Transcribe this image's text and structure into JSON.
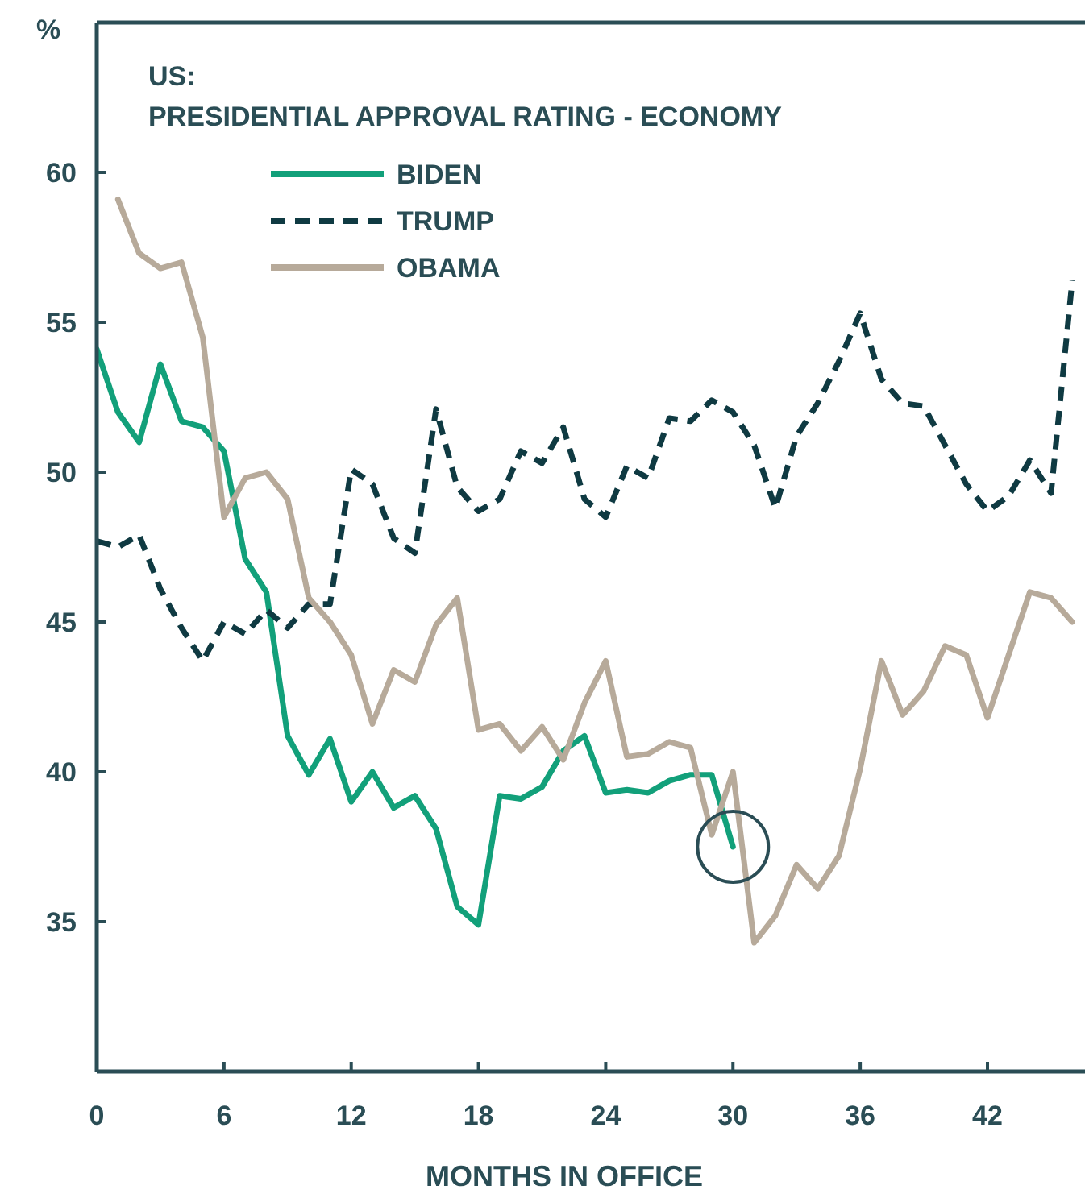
{
  "chart_data": {
    "type": "line",
    "title": "US:\nPRESIDENTIAL APPROVAL RATING - ECONOMY",
    "xlabel": "MONTHS IN OFFICE",
    "ylabel": "%",
    "xlim": [
      0,
      46.6
    ],
    "ylim": [
      30,
      65
    ],
    "xticks": [
      0,
      6,
      12,
      18,
      24,
      30,
      36,
      42
    ],
    "yticks": [
      35,
      40,
      45,
      50,
      55,
      60
    ],
    "legend": "top left",
    "x": [
      0,
      1,
      2,
      3,
      4,
      5,
      6,
      7,
      8,
      9,
      10,
      11,
      12,
      13,
      14,
      15,
      16,
      17,
      18,
      19,
      20,
      21,
      22,
      23,
      24,
      25,
      26,
      27,
      28,
      29,
      30,
      31,
      32,
      33,
      34,
      35,
      36,
      37,
      38,
      39,
      40,
      41,
      42,
      43,
      44,
      45,
      46
    ],
    "series": [
      {
        "name": "BIDEN",
        "color": "#12a07a",
        "line_style": "solid",
        "values": [
          54.1,
          52.0,
          51.0,
          53.6,
          51.7,
          51.5,
          50.7,
          47.1,
          46.0,
          41.2,
          39.9,
          41.1,
          39.0,
          40.0,
          38.8,
          39.2,
          38.1,
          35.5,
          34.9,
          39.2,
          39.1,
          39.5,
          40.7,
          41.2,
          39.3,
          39.4,
          39.3,
          39.7,
          39.9,
          39.9,
          37.5,
          null,
          null,
          null,
          null,
          null,
          null,
          null,
          null,
          null,
          null,
          null,
          null,
          null,
          null,
          null,
          null
        ]
      },
      {
        "name": "TRUMP",
        "color": "#0f3a42",
        "line_style": "dashed",
        "values": [
          47.7,
          47.5,
          47.9,
          46.1,
          44.8,
          43.7,
          45.0,
          44.6,
          45.4,
          44.8,
          45.6,
          45.6,
          50.1,
          49.6,
          47.8,
          47.3,
          52.1,
          49.5,
          48.7,
          49.1,
          50.7,
          50.3,
          51.5,
          49.1,
          48.5,
          50.2,
          49.8,
          51.8,
          51.7,
          52.4,
          52.0,
          50.9,
          48.8,
          51.2,
          52.3,
          53.7,
          55.3,
          53.1,
          52.3,
          52.2,
          50.9,
          49.6,
          48.7,
          49.2,
          50.4,
          49.3,
          56.4
        ]
      },
      {
        "name": "OBAMA",
        "color": "#b7aa9a",
        "line_style": "solid",
        "values": [
          null,
          59.1,
          57.3,
          56.8,
          57.0,
          54.5,
          48.5,
          49.8,
          50.0,
          49.1,
          45.8,
          45.0,
          43.9,
          41.6,
          43.4,
          43.0,
          44.9,
          45.8,
          41.4,
          41.6,
          40.7,
          41.5,
          40.4,
          42.3,
          43.7,
          40.5,
          40.6,
          41.0,
          40.8,
          37.9,
          40.0,
          34.3,
          35.2,
          36.9,
          36.1,
          37.2,
          40.1,
          43.7,
          41.9,
          42.7,
          44.2,
          43.9,
          41.8,
          43.9,
          46.0,
          45.8,
          45.0
        ]
      }
    ]
  }
}
